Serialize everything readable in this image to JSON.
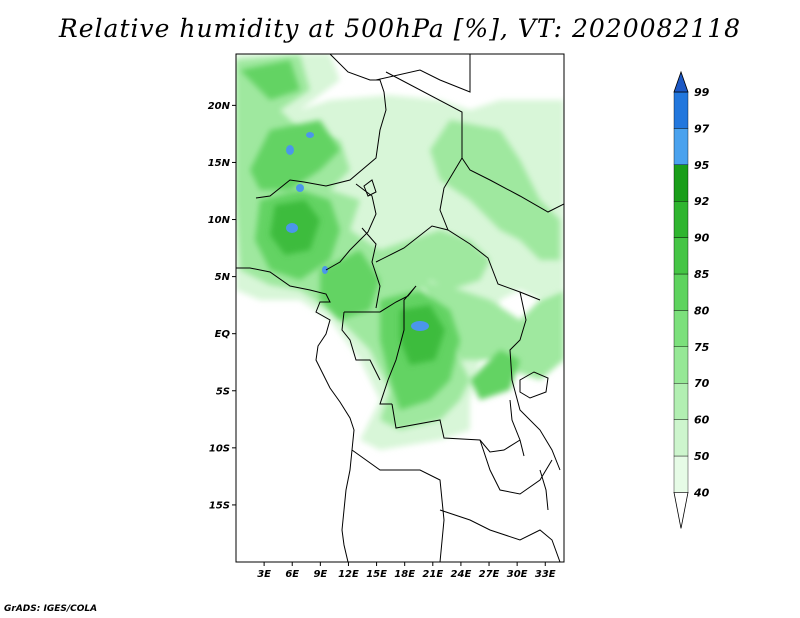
{
  "title": "Relative humidity at 500hPa [%], VT: 2020082118",
  "footer": "GrADS: IGES/COLA",
  "axes": {
    "lat_labels": [
      "20N",
      "15N",
      "10N",
      "5N",
      "EQ",
      "5S",
      "10S",
      "15S"
    ],
    "lat_values": [
      20,
      15,
      10,
      5,
      0,
      -5,
      -10,
      -15
    ],
    "lon_labels": [
      "3E",
      "6E",
      "9E",
      "12E",
      "15E",
      "18E",
      "21E",
      "24E",
      "27E",
      "30E",
      "33E"
    ],
    "lon_values": [
      3,
      6,
      9,
      12,
      15,
      18,
      21,
      24,
      27,
      30,
      33
    ],
    "lon_range": [
      0,
      35
    ],
    "lat_range": [
      -20,
      24.5
    ]
  },
  "colorbar": {
    "labels": [
      "40",
      "50",
      "60",
      "70",
      "75",
      "80",
      "85",
      "90",
      "92",
      "95",
      "97",
      "99"
    ],
    "colors": [
      "#ffffff",
      "#e6fbe6",
      "#cdf5cd",
      "#b2efb2",
      "#96e896",
      "#7ce07c",
      "#5ed35e",
      "#45c545",
      "#2fb52f",
      "#1a9e1a",
      "#4aa2ee",
      "#2277dd",
      "#1c58c4"
    ]
  },
  "fill_colors": {
    "light": "#d8f6d8",
    "mid": "#9fe89f",
    "strong": "#63d363",
    "deep": "#3cbc3c",
    "peak": "#4b96ea"
  }
}
